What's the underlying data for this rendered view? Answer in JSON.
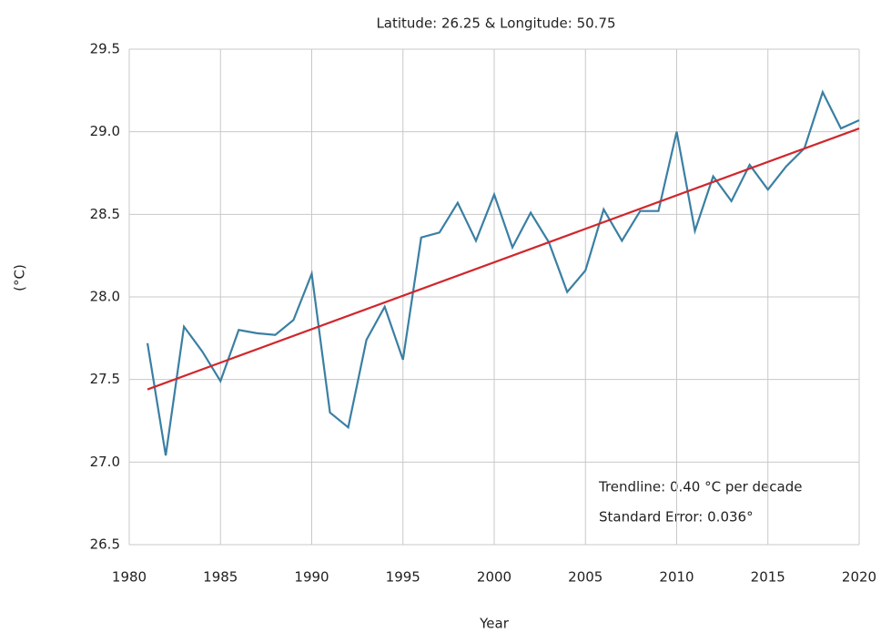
{
  "chart_data": {
    "type": "line",
    "title": "Latitude: 26.25 & Longitude: 50.75",
    "x_label": "Year",
    "y_label": "(°C)",
    "x": [
      1981,
      1982,
      1983,
      1984,
      1985,
      1986,
      1987,
      1988,
      1989,
      1990,
      1991,
      1992,
      1993,
      1994,
      1995,
      1996,
      1997,
      1998,
      1999,
      2000,
      2001,
      2002,
      2003,
      2004,
      2005,
      2006,
      2007,
      2008,
      2009,
      2010,
      2011,
      2012,
      2013,
      2014,
      2015,
      2016,
      2017,
      2018,
      2019,
      2020
    ],
    "series": [
      {
        "color": "#3a7fa3",
        "values": [
          27.72,
          27.04,
          27.82,
          27.67,
          27.49,
          27.8,
          27.78,
          27.77,
          27.86,
          28.14,
          27.3,
          27.21,
          27.74,
          27.94,
          27.62,
          28.36,
          28.39,
          28.57,
          28.34,
          28.62,
          28.3,
          28.51,
          28.33,
          28.03,
          28.16,
          28.53,
          28.34,
          28.52,
          28.52,
          29.0,
          28.4,
          28.73,
          28.58,
          28.8,
          28.65,
          28.79,
          28.9,
          29.24,
          29.02,
          29.07
        ]
      }
    ],
    "trendline": {
      "color": "#d0272d",
      "x": [
        1981,
        2020
      ],
      "values": [
        27.44,
        29.02
      ]
    },
    "annotations": [
      "Trendline: 0.40 °C per decade",
      "Standard Error: 0.036°"
    ],
    "xlim": [
      1980,
      2020
    ],
    "xticks": [
      1980,
      1985,
      1990,
      1995,
      2000,
      2005,
      2010,
      2015,
      2020
    ],
    "ylim": [
      26.5,
      29.5
    ],
    "yticks": [
      26.5,
      {
        "value": 27,
        "label": "27.0"
      },
      27.5,
      {
        "value": 28,
        "label": "28.0"
      },
      28.5,
      {
        "value": 29,
        "label": "29.0"
      },
      29.5
    ],
    "grid": true
  }
}
